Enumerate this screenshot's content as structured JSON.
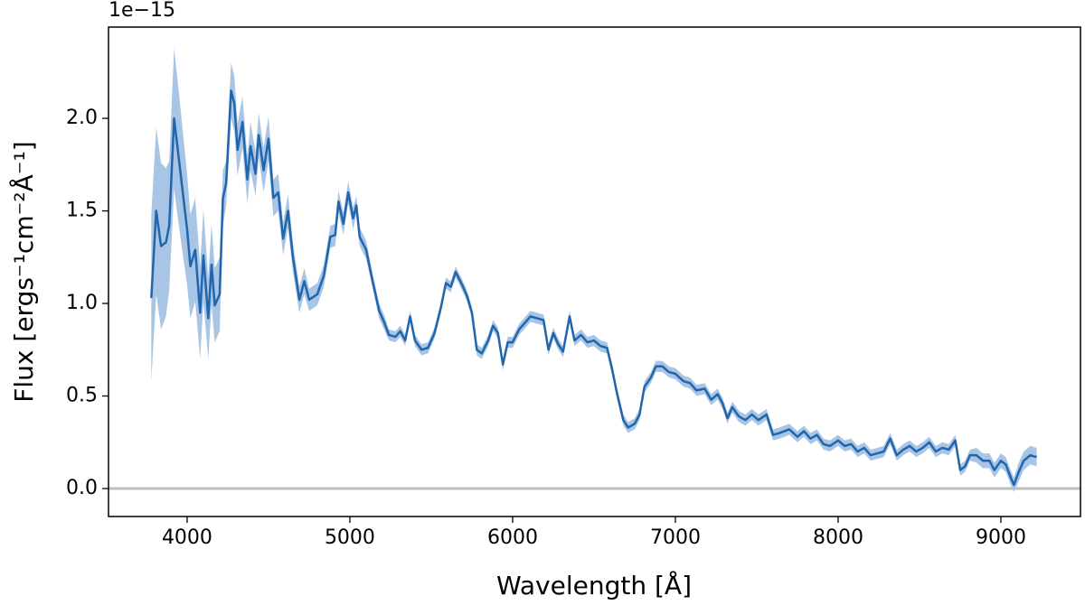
{
  "chart_data": {
    "type": "line",
    "xlabel": "Wavelength [Å]",
    "ylabel": "Flux [ergs⁻¹cm⁻²Å⁻¹]",
    "offset_text": "1e−15",
    "xlim": [
      3517,
      9489
    ],
    "ylim": [
      -0.151,
      2.493
    ],
    "xticks": [
      4000,
      5000,
      6000,
      7000,
      8000,
      9000
    ],
    "yticks": [
      {
        "value": 0,
        "label": "0.0"
      },
      {
        "value": 0.5,
        "label": "0.5"
      },
      {
        "value": 1,
        "label": "1.0"
      },
      {
        "value": 1.5,
        "label": "1.5"
      },
      {
        "value": 2,
        "label": "2.0"
      }
    ],
    "hline": 0,
    "hline_color": "#bdbdbd",
    "x": [
      3780,
      3810,
      3840,
      3870,
      3890,
      3920,
      3960,
      4000,
      4020,
      4050,
      4080,
      4100,
      4130,
      4150,
      4170,
      4200,
      4220,
      4240,
      4270,
      4290,
      4310,
      4340,
      4370,
      4390,
      4420,
      4440,
      4470,
      4500,
      4530,
      4560,
      4590,
      4620,
      4650,
      4690,
      4720,
      4750,
      4800,
      4840,
      4880,
      4910,
      4930,
      4960,
      4990,
      5020,
      5040,
      5060,
      5100,
      5140,
      5180,
      5210,
      5240,
      5280,
      5310,
      5340,
      5370,
      5400,
      5440,
      5480,
      5520,
      5560,
      5590,
      5620,
      5650,
      5690,
      5720,
      5750,
      5780,
      5810,
      5850,
      5880,
      5910,
      5940,
      5970,
      6000,
      6040,
      6080,
      6110,
      6150,
      6190,
      6220,
      6250,
      6280,
      6310,
      6350,
      6380,
      6420,
      6460,
      6500,
      6540,
      6580,
      6610,
      6640,
      6680,
      6710,
      6750,
      6780,
      6810,
      6850,
      6880,
      6920,
      6960,
      7000,
      7050,
      7090,
      7130,
      7180,
      7220,
      7260,
      7290,
      7320,
      7350,
      7390,
      7430,
      7470,
      7510,
      7560,
      7600,
      7640,
      7700,
      7750,
      7790,
      7830,
      7870,
      7910,
      7950,
      8000,
      8040,
      8080,
      8120,
      8160,
      8200,
      8240,
      8280,
      8320,
      8360,
      8400,
      8440,
      8480,
      8520,
      8560,
      8600,
      8640,
      8680,
      8720,
      8750,
      8780,
      8810,
      8850,
      8890,
      8930,
      8960,
      9000,
      9030,
      9060,
      9080,
      9110,
      9140,
      9180,
      9220
    ],
    "series": [
      {
        "color": "#2166ac",
        "band_color": "#a9c5e5",
        "values": [
          1.03,
          1.5,
          1.31,
          1.33,
          1.42,
          2.0,
          1.7,
          1.4,
          1.2,
          1.29,
          0.95,
          1.26,
          0.92,
          1.21,
          0.99,
          1.05,
          1.57,
          1.65,
          2.15,
          2.08,
          1.83,
          1.98,
          1.67,
          1.85,
          1.7,
          1.91,
          1.72,
          1.89,
          1.57,
          1.6,
          1.35,
          1.5,
          1.25,
          1.02,
          1.12,
          1.02,
          1.05,
          1.15,
          1.36,
          1.37,
          1.55,
          1.43,
          1.6,
          1.46,
          1.53,
          1.36,
          1.29,
          1.12,
          0.96,
          0.9,
          0.83,
          0.82,
          0.85,
          0.8,
          0.93,
          0.8,
          0.75,
          0.76,
          0.84,
          0.98,
          1.11,
          1.09,
          1.17,
          1.1,
          1.04,
          0.95,
          0.75,
          0.73,
          0.8,
          0.88,
          0.84,
          0.67,
          0.79,
          0.79,
          0.86,
          0.9,
          0.93,
          0.92,
          0.91,
          0.75,
          0.84,
          0.78,
          0.74,
          0.93,
          0.8,
          0.83,
          0.79,
          0.8,
          0.77,
          0.76,
          0.65,
          0.52,
          0.37,
          0.33,
          0.35,
          0.4,
          0.55,
          0.6,
          0.66,
          0.66,
          0.63,
          0.62,
          0.58,
          0.57,
          0.53,
          0.54,
          0.48,
          0.51,
          0.46,
          0.38,
          0.44,
          0.39,
          0.37,
          0.4,
          0.37,
          0.4,
          0.29,
          0.3,
          0.32,
          0.28,
          0.31,
          0.27,
          0.29,
          0.24,
          0.23,
          0.26,
          0.23,
          0.24,
          0.2,
          0.22,
          0.18,
          0.19,
          0.2,
          0.27,
          0.18,
          0.21,
          0.23,
          0.2,
          0.22,
          0.25,
          0.2,
          0.22,
          0.21,
          0.26,
          0.1,
          0.12,
          0.18,
          0.18,
          0.15,
          0.15,
          0.1,
          0.15,
          0.13,
          0.06,
          0.02,
          0.09,
          0.15,
          0.18,
          0.17
        ],
        "errors": [
          0.45,
          0.45,
          0.45,
          0.4,
          0.35,
          0.38,
          0.35,
          0.3,
          0.28,
          0.28,
          0.25,
          0.25,
          0.22,
          0.22,
          0.2,
          0.2,
          0.15,
          0.12,
          0.15,
          0.15,
          0.14,
          0.14,
          0.13,
          0.13,
          0.12,
          0.12,
          0.12,
          0.12,
          0.1,
          0.1,
          0.09,
          0.09,
          0.08,
          0.07,
          0.07,
          0.06,
          0.06,
          0.06,
          0.06,
          0.06,
          0.06,
          0.06,
          0.06,
          0.06,
          0.05,
          0.05,
          0.05,
          0.04,
          0.04,
          0.04,
          0.03,
          0.03,
          0.03,
          0.03,
          0.03,
          0.03,
          0.03,
          0.03,
          0.03,
          0.03,
          0.03,
          0.03,
          0.03,
          0.03,
          0.03,
          0.03,
          0.03,
          0.03,
          0.03,
          0.03,
          0.03,
          0.03,
          0.03,
          0.03,
          0.03,
          0.03,
          0.03,
          0.03,
          0.03,
          0.03,
          0.03,
          0.03,
          0.03,
          0.03,
          0.03,
          0.03,
          0.03,
          0.03,
          0.03,
          0.03,
          0.03,
          0.03,
          0.03,
          0.03,
          0.03,
          0.03,
          0.03,
          0.03,
          0.03,
          0.03,
          0.03,
          0.03,
          0.03,
          0.03,
          0.03,
          0.03,
          0.03,
          0.03,
          0.03,
          0.03,
          0.03,
          0.03,
          0.03,
          0.03,
          0.03,
          0.03,
          0.03,
          0.03,
          0.03,
          0.03,
          0.03,
          0.03,
          0.03,
          0.03,
          0.03,
          0.03,
          0.03,
          0.03,
          0.03,
          0.03,
          0.03,
          0.03,
          0.03,
          0.03,
          0.03,
          0.03,
          0.03,
          0.03,
          0.03,
          0.03,
          0.03,
          0.03,
          0.03,
          0.03,
          0.03,
          0.03,
          0.03,
          0.04,
          0.04,
          0.04,
          0.04,
          0.04,
          0.04,
          0.04,
          0.04,
          0.05,
          0.05,
          0.05,
          0.05
        ]
      }
    ]
  }
}
